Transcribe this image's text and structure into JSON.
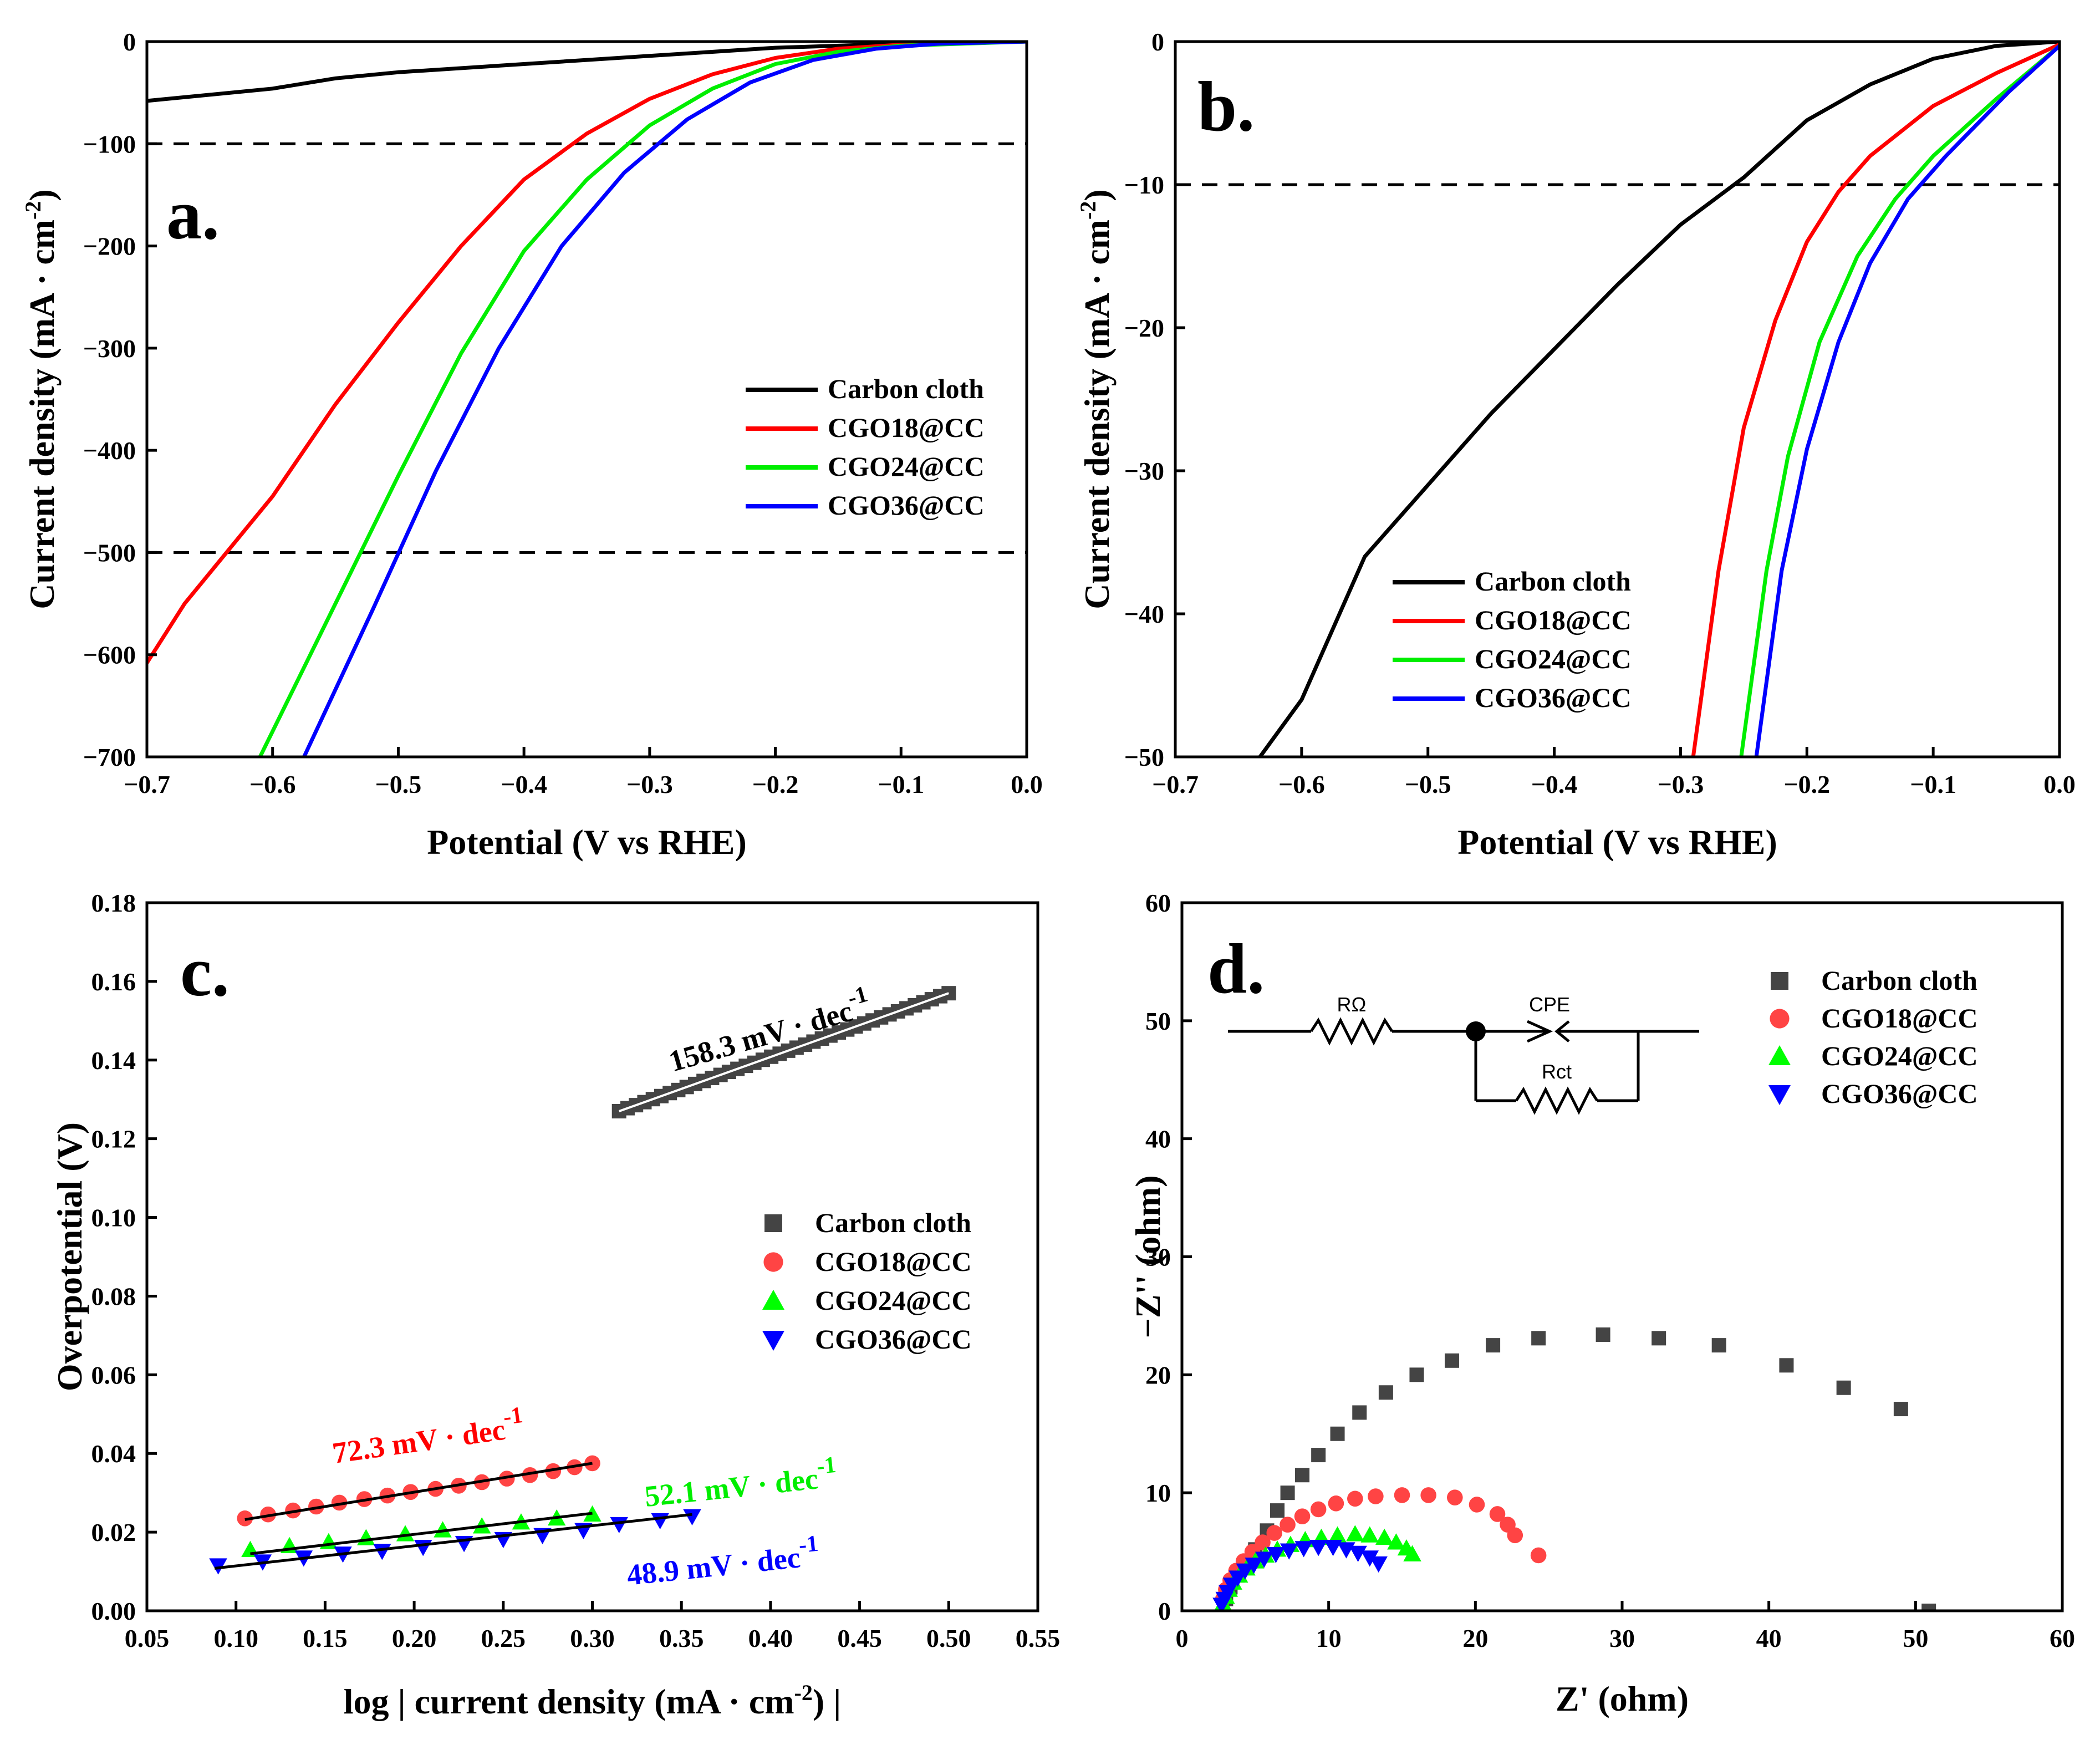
{
  "colors": {
    "carbon_cloth": "#000000",
    "cgo18": "#ff0000",
    "cgo24": "#00ee00",
    "cgo36": "#0000ff",
    "carbon_cloth_marker": "#444444",
    "cgo18_marker": "#ff4444",
    "cgo24_marker": "#00ff00",
    "cgo36_marker": "#0000ff"
  },
  "chart_data": [
    {
      "type": "line",
      "panel_label": "a.",
      "xlabel": "Potential (V vs RHE)",
      "ylabel": "Current density (mA · cm⁻²)",
      "xlim": [
        -0.7,
        0.0
      ],
      "ylim": [
        -700,
        0
      ],
      "xticks": [
        -0.7,
        -0.6,
        -0.5,
        -0.4,
        -0.3,
        -0.2,
        -0.1,
        0.0
      ],
      "xtick_labels": [
        "−0.7",
        "−0.6",
        "−0.5",
        "−0.4",
        "−0.3",
        "−0.2",
        "−0.1",
        "0.0"
      ],
      "yticks": [
        0,
        -100,
        -200,
        -300,
        -400,
        -500,
        -600,
        -700
      ],
      "ytick_labels": [
        "0",
        "−100",
        "−200",
        "−300",
        "−400",
        "−500",
        "−600",
        "−700"
      ],
      "reference_lines": [
        -100,
        -500
      ],
      "legend_position": "center-right",
      "series": [
        {
          "name": "Carbon cloth",
          "color_key": "carbon_cloth",
          "points": [
            [
              -0.7,
              -58
            ],
            [
              -0.6,
              -46
            ],
            [
              -0.55,
              -36
            ],
            [
              -0.5,
              -30
            ],
            [
              -0.4,
              -22
            ],
            [
              -0.3,
              -14
            ],
            [
              -0.2,
              -6
            ],
            [
              -0.1,
              -2
            ],
            [
              0.0,
              0
            ]
          ]
        },
        {
          "name": "CGO18@CC",
          "color_key": "cgo18",
          "points": [
            [
              -0.7,
              -608
            ],
            [
              -0.67,
              -550
            ],
            [
              -0.6,
              -445
            ],
            [
              -0.55,
              -355
            ],
            [
              -0.5,
              -275
            ],
            [
              -0.45,
              -200
            ],
            [
              -0.4,
              -135
            ],
            [
              -0.35,
              -90
            ],
            [
              -0.3,
              -56
            ],
            [
              -0.25,
              -32
            ],
            [
              -0.2,
              -16
            ],
            [
              -0.15,
              -7
            ],
            [
              -0.1,
              -3
            ],
            [
              0.0,
              0
            ]
          ]
        },
        {
          "name": "CGO24@CC",
          "color_key": "cgo24",
          "points": [
            [
              -0.61,
              -700
            ],
            [
              -0.55,
              -550
            ],
            [
              -0.5,
              -425
            ],
            [
              -0.45,
              -305
            ],
            [
              -0.4,
              -205
            ],
            [
              -0.35,
              -135
            ],
            [
              -0.3,
              -82
            ],
            [
              -0.25,
              -46
            ],
            [
              -0.2,
              -22
            ],
            [
              -0.15,
              -10
            ],
            [
              -0.1,
              -4
            ],
            [
              0.0,
              0
            ]
          ]
        },
        {
          "name": "CGO36@CC",
          "color_key": "cgo36",
          "points": [
            [
              -0.575,
              -700
            ],
            [
              -0.52,
              -555
            ],
            [
              -0.47,
              -420
            ],
            [
              -0.42,
              -300
            ],
            [
              -0.37,
              -200
            ],
            [
              -0.32,
              -128
            ],
            [
              -0.27,
              -76
            ],
            [
              -0.22,
              -40
            ],
            [
              -0.17,
              -18
            ],
            [
              -0.12,
              -7
            ],
            [
              -0.07,
              -2
            ],
            [
              0.0,
              0
            ]
          ]
        }
      ]
    },
    {
      "type": "line",
      "panel_label": "b.",
      "xlabel": "Potential (V vs RHE)",
      "ylabel": "Current density (mA · cm⁻²)",
      "xlim": [
        -0.7,
        0.0
      ],
      "ylim": [
        -50,
        0
      ],
      "xticks": [
        -0.7,
        -0.6,
        -0.5,
        -0.4,
        -0.3,
        -0.2,
        -0.1,
        0.0
      ],
      "xtick_labels": [
        "−0.7",
        "−0.6",
        "−0.5",
        "−0.4",
        "−0.3",
        "−0.2",
        "−0.1",
        "0.0"
      ],
      "yticks": [
        0,
        -10,
        -20,
        -30,
        -40,
        -50
      ],
      "ytick_labels": [
        "0",
        "−10",
        "−20",
        "−30",
        "−40",
        "−50"
      ],
      "reference_lines": [
        -10
      ],
      "legend_position": "bottom-left",
      "series": [
        {
          "name": "Carbon cloth",
          "color_key": "carbon_cloth",
          "points": [
            [
              -0.633,
              -50
            ],
            [
              -0.6,
              -46
            ],
            [
              -0.55,
              -36
            ],
            [
              -0.5,
              -31
            ],
            [
              -0.45,
              -26
            ],
            [
              -0.4,
              -21.5
            ],
            [
              -0.35,
              -17
            ],
            [
              -0.3,
              -12.8
            ],
            [
              -0.25,
              -9.5
            ],
            [
              -0.2,
              -5.5
            ],
            [
              -0.15,
              -3
            ],
            [
              -0.1,
              -1.2
            ],
            [
              -0.05,
              -0.3
            ],
            [
              0.0,
              0
            ]
          ]
        },
        {
          "name": "CGO18@CC",
          "color_key": "cgo18",
          "points": [
            [
              -0.29,
              -50
            ],
            [
              -0.27,
              -37
            ],
            [
              -0.25,
              -27
            ],
            [
              -0.225,
              -19.5
            ],
            [
              -0.2,
              -14
            ],
            [
              -0.175,
              -10.5
            ],
            [
              -0.15,
              -8
            ],
            [
              -0.1,
              -4.5
            ],
            [
              -0.05,
              -2.2
            ],
            [
              0.0,
              -0.2
            ]
          ]
        },
        {
          "name": "CGO24@CC",
          "color_key": "cgo24",
          "points": [
            [
              -0.252,
              -50
            ],
            [
              -0.232,
              -37
            ],
            [
              -0.215,
              -29
            ],
            [
              -0.19,
              -21
            ],
            [
              -0.16,
              -15
            ],
            [
              -0.13,
              -11
            ],
            [
              -0.1,
              -8
            ],
            [
              -0.05,
              -4
            ],
            [
              0.0,
              -0.3
            ]
          ]
        },
        {
          "name": "CGO36@CC",
          "color_key": "cgo36",
          "points": [
            [
              -0.24,
              -50
            ],
            [
              -0.22,
              -37
            ],
            [
              -0.2,
              -28.5
            ],
            [
              -0.175,
              -21
            ],
            [
              -0.15,
              -15.5
            ],
            [
              -0.12,
              -11
            ],
            [
              -0.09,
              -8
            ],
            [
              -0.04,
              -3.5
            ],
            [
              0.0,
              -0.3
            ]
          ]
        }
      ]
    },
    {
      "type": "scatter",
      "panel_label": "c.",
      "xlabel": "log | current density (mA · cm⁻²) |",
      "ylabel": "Overpotential (V)",
      "xlim": [
        0.05,
        0.55
      ],
      "ylim": [
        0.0,
        0.18
      ],
      "xticks": [
        0.05,
        0.1,
        0.15,
        0.2,
        0.25,
        0.3,
        0.35,
        0.4,
        0.45,
        0.5,
        0.55
      ],
      "xtick_labels": [
        "0.05",
        "0.10",
        "0.15",
        "0.20",
        "0.25",
        "0.30",
        "0.35",
        "0.40",
        "0.45",
        "0.50",
        "0.55"
      ],
      "yticks": [
        0.0,
        0.02,
        0.04,
        0.06,
        0.08,
        0.1,
        0.12,
        0.14,
        0.16,
        0.18
      ],
      "ytick_labels": [
        "0.00",
        "0.02",
        "0.04",
        "0.06",
        "0.08",
        "0.10",
        "0.12",
        "0.14",
        "0.16",
        "0.18"
      ],
      "legend_position": "center-right",
      "series": [
        {
          "name": "Carbon cloth",
          "color_key": "carbon_cloth_marker",
          "marker": "square",
          "x_range": [
            0.315,
            0.5
          ],
          "y_range": [
            0.127,
            0.157
          ],
          "n_points": 40,
          "fit": [
            [
              0.315,
              0.127
            ],
            [
              0.5,
              0.157
            ]
          ]
        },
        {
          "name": "CGO18@CC",
          "color_key": "cgo18_marker",
          "marker": "circle",
          "x": [
            0.105,
            0.118,
            0.132,
            0.145,
            0.158,
            0.172,
            0.185,
            0.198,
            0.212,
            0.225,
            0.238,
            0.252,
            0.265,
            0.278,
            0.29,
            0.3
          ],
          "y": [
            0.0235,
            0.0245,
            0.0255,
            0.0265,
            0.0275,
            0.0284,
            0.0293,
            0.0302,
            0.031,
            0.0318,
            0.0327,
            0.0336,
            0.0345,
            0.0355,
            0.0365,
            0.0375
          ],
          "fit": [
            [
              0.105,
              0.0232
            ],
            [
              0.3,
              0.0375
            ]
          ]
        },
        {
          "name": "CGO24@CC",
          "color_key": "cgo24_marker",
          "marker": "triangle-up",
          "x": [
            0.108,
            0.13,
            0.152,
            0.173,
            0.195,
            0.216,
            0.238,
            0.26,
            0.28,
            0.3
          ],
          "y": [
            0.0155,
            0.0165,
            0.0175,
            0.0185,
            0.0195,
            0.0205,
            0.0215,
            0.0225,
            0.0235,
            0.0245
          ],
          "fit": [
            [
              0.108,
              0.0145
            ],
            [
              0.3,
              0.0248
            ]
          ]
        },
        {
          "name": "CGO36@CC",
          "color_key": "cgo36_marker",
          "marker": "triangle-down",
          "x": [
            0.09,
            0.115,
            0.138,
            0.16,
            0.182,
            0.205,
            0.228,
            0.25,
            0.272,
            0.295,
            0.315,
            0.338,
            0.356
          ],
          "y": [
            0.0115,
            0.0125,
            0.0135,
            0.0145,
            0.0152,
            0.0162,
            0.0172,
            0.0182,
            0.0192,
            0.0205,
            0.022,
            0.023,
            0.024
          ],
          "fit": [
            [
              0.088,
              0.0108
            ],
            [
              0.356,
              0.0245
            ]
          ]
        }
      ],
      "annotations": [
        {
          "text": "158.3 mV · dec",
          "sup": "-1",
          "color_key": "carbon_cloth",
          "anchor": [
            0.345,
            0.137
          ],
          "angle": -16
        },
        {
          "text": "72.3 mV · dec",
          "sup": "-1",
          "color_key": "cgo18",
          "anchor": [
            0.155,
            0.0375
          ],
          "angle": -8
        },
        {
          "text": "52.1 mV · dec",
          "sup": "-1",
          "color_key": "cgo24",
          "anchor": [
            0.33,
            0.0265
          ],
          "angle": -6
        },
        {
          "text": "48.9 mV · dec",
          "sup": "-1",
          "color_key": "cgo36",
          "anchor": [
            0.32,
            0.0065
          ],
          "angle": -6
        }
      ]
    },
    {
      "type": "scatter",
      "panel_label": "d.",
      "xlabel": "Z' (ohm)",
      "ylabel": "−Z'' (ohm)",
      "xlim": [
        0,
        60
      ],
      "ylim": [
        0,
        60
      ],
      "xticks": [
        0,
        10,
        20,
        30,
        40,
        50,
        60
      ],
      "xtick_labels": [
        "0",
        "10",
        "20",
        "30",
        "40",
        "50",
        "60"
      ],
      "yticks": [
        0,
        10,
        20,
        30,
        40,
        50,
        60
      ],
      "ytick_labels": [
        "0",
        "10",
        "20",
        "30",
        "40",
        "50",
        "60"
      ],
      "legend_position": "top-right",
      "circuit_labels": [
        "RΩ",
        "CPE",
        "Rct"
      ],
      "series": [
        {
          "name": "Carbon cloth",
          "color_key": "carbon_cloth_marker",
          "marker": "square",
          "x": [
            3.0,
            3.3,
            3.8,
            4.3,
            5.0,
            5.8,
            6.5,
            7.2,
            8.2,
            9.3,
            10.6,
            12.1,
            13.9,
            16.0,
            18.4,
            21.2,
            24.3,
            28.7,
            32.5,
            36.6,
            41.2,
            45.1,
            49.0,
            50.9
          ],
          "y": [
            1.0,
            2.0,
            3.0,
            4.0,
            5.2,
            6.8,
            8.5,
            10.0,
            11.5,
            13.2,
            15.0,
            16.8,
            18.5,
            20.0,
            21.2,
            22.5,
            23.1,
            23.4,
            23.1,
            22.5,
            20.8,
            18.9,
            17.1,
            0.0
          ]
        },
        {
          "name": "CGO18@CC",
          "color_key": "cgo18_marker",
          "marker": "circle",
          "x": [
            2.8,
            3.0,
            3.3,
            3.7,
            4.2,
            4.8,
            5.5,
            6.3,
            7.2,
            8.2,
            9.3,
            10.5,
            11.8,
            13.2,
            15.0,
            16.8,
            18.6,
            20.1,
            21.5,
            22.2,
            22.7,
            24.3
          ],
          "y": [
            1.0,
            1.8,
            2.6,
            3.4,
            4.2,
            5.0,
            5.8,
            6.6,
            7.3,
            8.0,
            8.6,
            9.1,
            9.5,
            9.7,
            9.8,
            9.8,
            9.6,
            9.0,
            8.2,
            7.3,
            6.4,
            4.7
          ]
        },
        {
          "name": "CGO24@CC",
          "color_key": "cgo24_marker",
          "marker": "triangle-up",
          "x": [
            2.8,
            3.0,
            3.2,
            3.5,
            3.9,
            4.4,
            5.0,
            5.7,
            6.5,
            7.4,
            8.4,
            9.5,
            10.6,
            11.8,
            12.8,
            13.8,
            14.6,
            15.3,
            15.7
          ],
          "y": [
            0.6,
            1.2,
            1.8,
            2.4,
            3.0,
            3.6,
            4.2,
            4.7,
            5.2,
            5.6,
            6.0,
            6.2,
            6.4,
            6.5,
            6.4,
            6.2,
            5.8,
            5.3,
            4.8
          ]
        },
        {
          "name": "CGO36@CC",
          "color_key": "cgo36_marker",
          "marker": "triangle-down",
          "x": [
            2.7,
            2.9,
            3.1,
            3.4,
            3.8,
            4.3,
            4.9,
            5.6,
            6.4,
            7.3,
            8.3,
            9.3,
            10.3,
            11.2,
            12.0,
            12.8,
            13.4
          ],
          "y": [
            0.5,
            1.0,
            1.6,
            2.2,
            2.8,
            3.4,
            3.9,
            4.4,
            4.8,
            5.1,
            5.3,
            5.4,
            5.4,
            5.2,
            4.9,
            4.5,
            4.0
          ]
        }
      ]
    }
  ]
}
